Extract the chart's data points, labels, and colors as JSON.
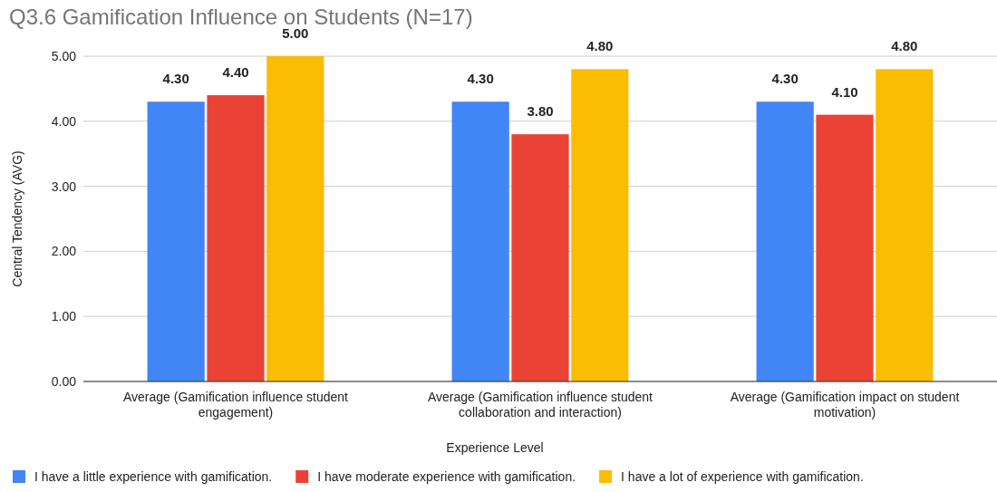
{
  "chart_data": {
    "type": "bar",
    "title": "Q3.6 Gamification Influence on Students (N=17)",
    "xlabel": "Experience Level",
    "ylabel": "Central Tendency (AVG)",
    "categories": [
      "Average (Gamification influence student engagement)",
      "Average (Gamification influence student collaboration and interaction)",
      "Average (Gamification impact on student motivation)"
    ],
    "series": [
      {
        "name": "I have a little experience with gamification.",
        "color": "#4285f4",
        "values": [
          4.3,
          4.3,
          4.3
        ]
      },
      {
        "name": "I have moderate experience with gamification.",
        "color": "#ea4335",
        "values": [
          4.4,
          3.8,
          4.1
        ]
      },
      {
        "name": "I have a lot of experience with gamification.",
        "color": "#fbbc04",
        "values": [
          5.0,
          4.8,
          4.8
        ]
      }
    ],
    "ylim": [
      0,
      5
    ],
    "yticks": [
      {
        "value": 0,
        "label": "0.00"
      },
      {
        "value": 1,
        "label": "1.00"
      },
      {
        "value": 2,
        "label": "2.00"
      },
      {
        "value": 3,
        "label": "3.00"
      },
      {
        "value": 4,
        "label": "4.00"
      },
      {
        "value": 5,
        "label": "5.00"
      }
    ],
    "value_labels": [
      [
        "4.30",
        "4.30",
        "4.30"
      ],
      [
        "4.40",
        "3.80",
        "4.10"
      ],
      [
        "5.00",
        "4.80",
        "4.80"
      ]
    ],
    "grid": "y",
    "legend": "bottom"
  }
}
